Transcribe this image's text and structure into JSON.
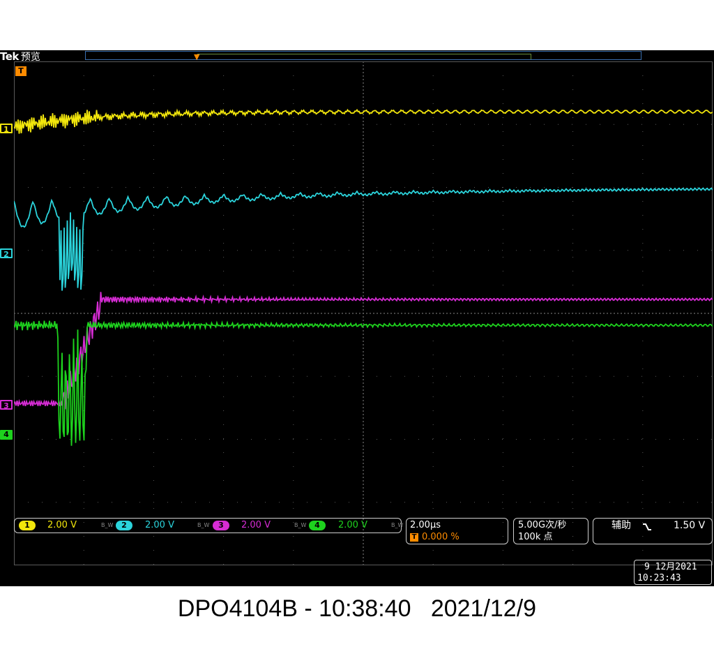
{
  "header": {
    "brand": "Tek",
    "mode": "预览",
    "trigger_marker": "T"
  },
  "colors": {
    "ch1": "#f2e60c",
    "ch2": "#2bd4dc",
    "ch3": "#d62cd4",
    "ch4": "#1ed21e",
    "trigger": "#ff8c00",
    "grid": "#5a5a5a"
  },
  "channels": [
    {
      "number": "1",
      "scale": "2.00 V",
      "bw_flag": "B_W",
      "icon": "channel-1-marker"
    },
    {
      "number": "2",
      "scale": "2.00 V",
      "bw_flag": "B_W",
      "icon": "channel-2-marker"
    },
    {
      "number": "3",
      "scale": "2.00 V",
      "bw_flag": "B_W",
      "icon": "channel-3-marker"
    },
    {
      "number": "4",
      "scale": "2.00 V",
      "bw_flag": "B_W",
      "icon": "channel-4-marker"
    }
  ],
  "horizontal": {
    "time_per_div": "2.00µs",
    "trigger_position": "0.000 %"
  },
  "acquisition": {
    "sample_rate": "5.00G次/秒",
    "record_length": "100k 点"
  },
  "trigger": {
    "source": "辅助",
    "slope_icon": "falling-edge-icon",
    "level": "1.50 V"
  },
  "datetime": {
    "date": "9 12月2021",
    "time": "10:23:43"
  },
  "caption": "DPO4104B - 10:38:40   2021/12/9"
}
